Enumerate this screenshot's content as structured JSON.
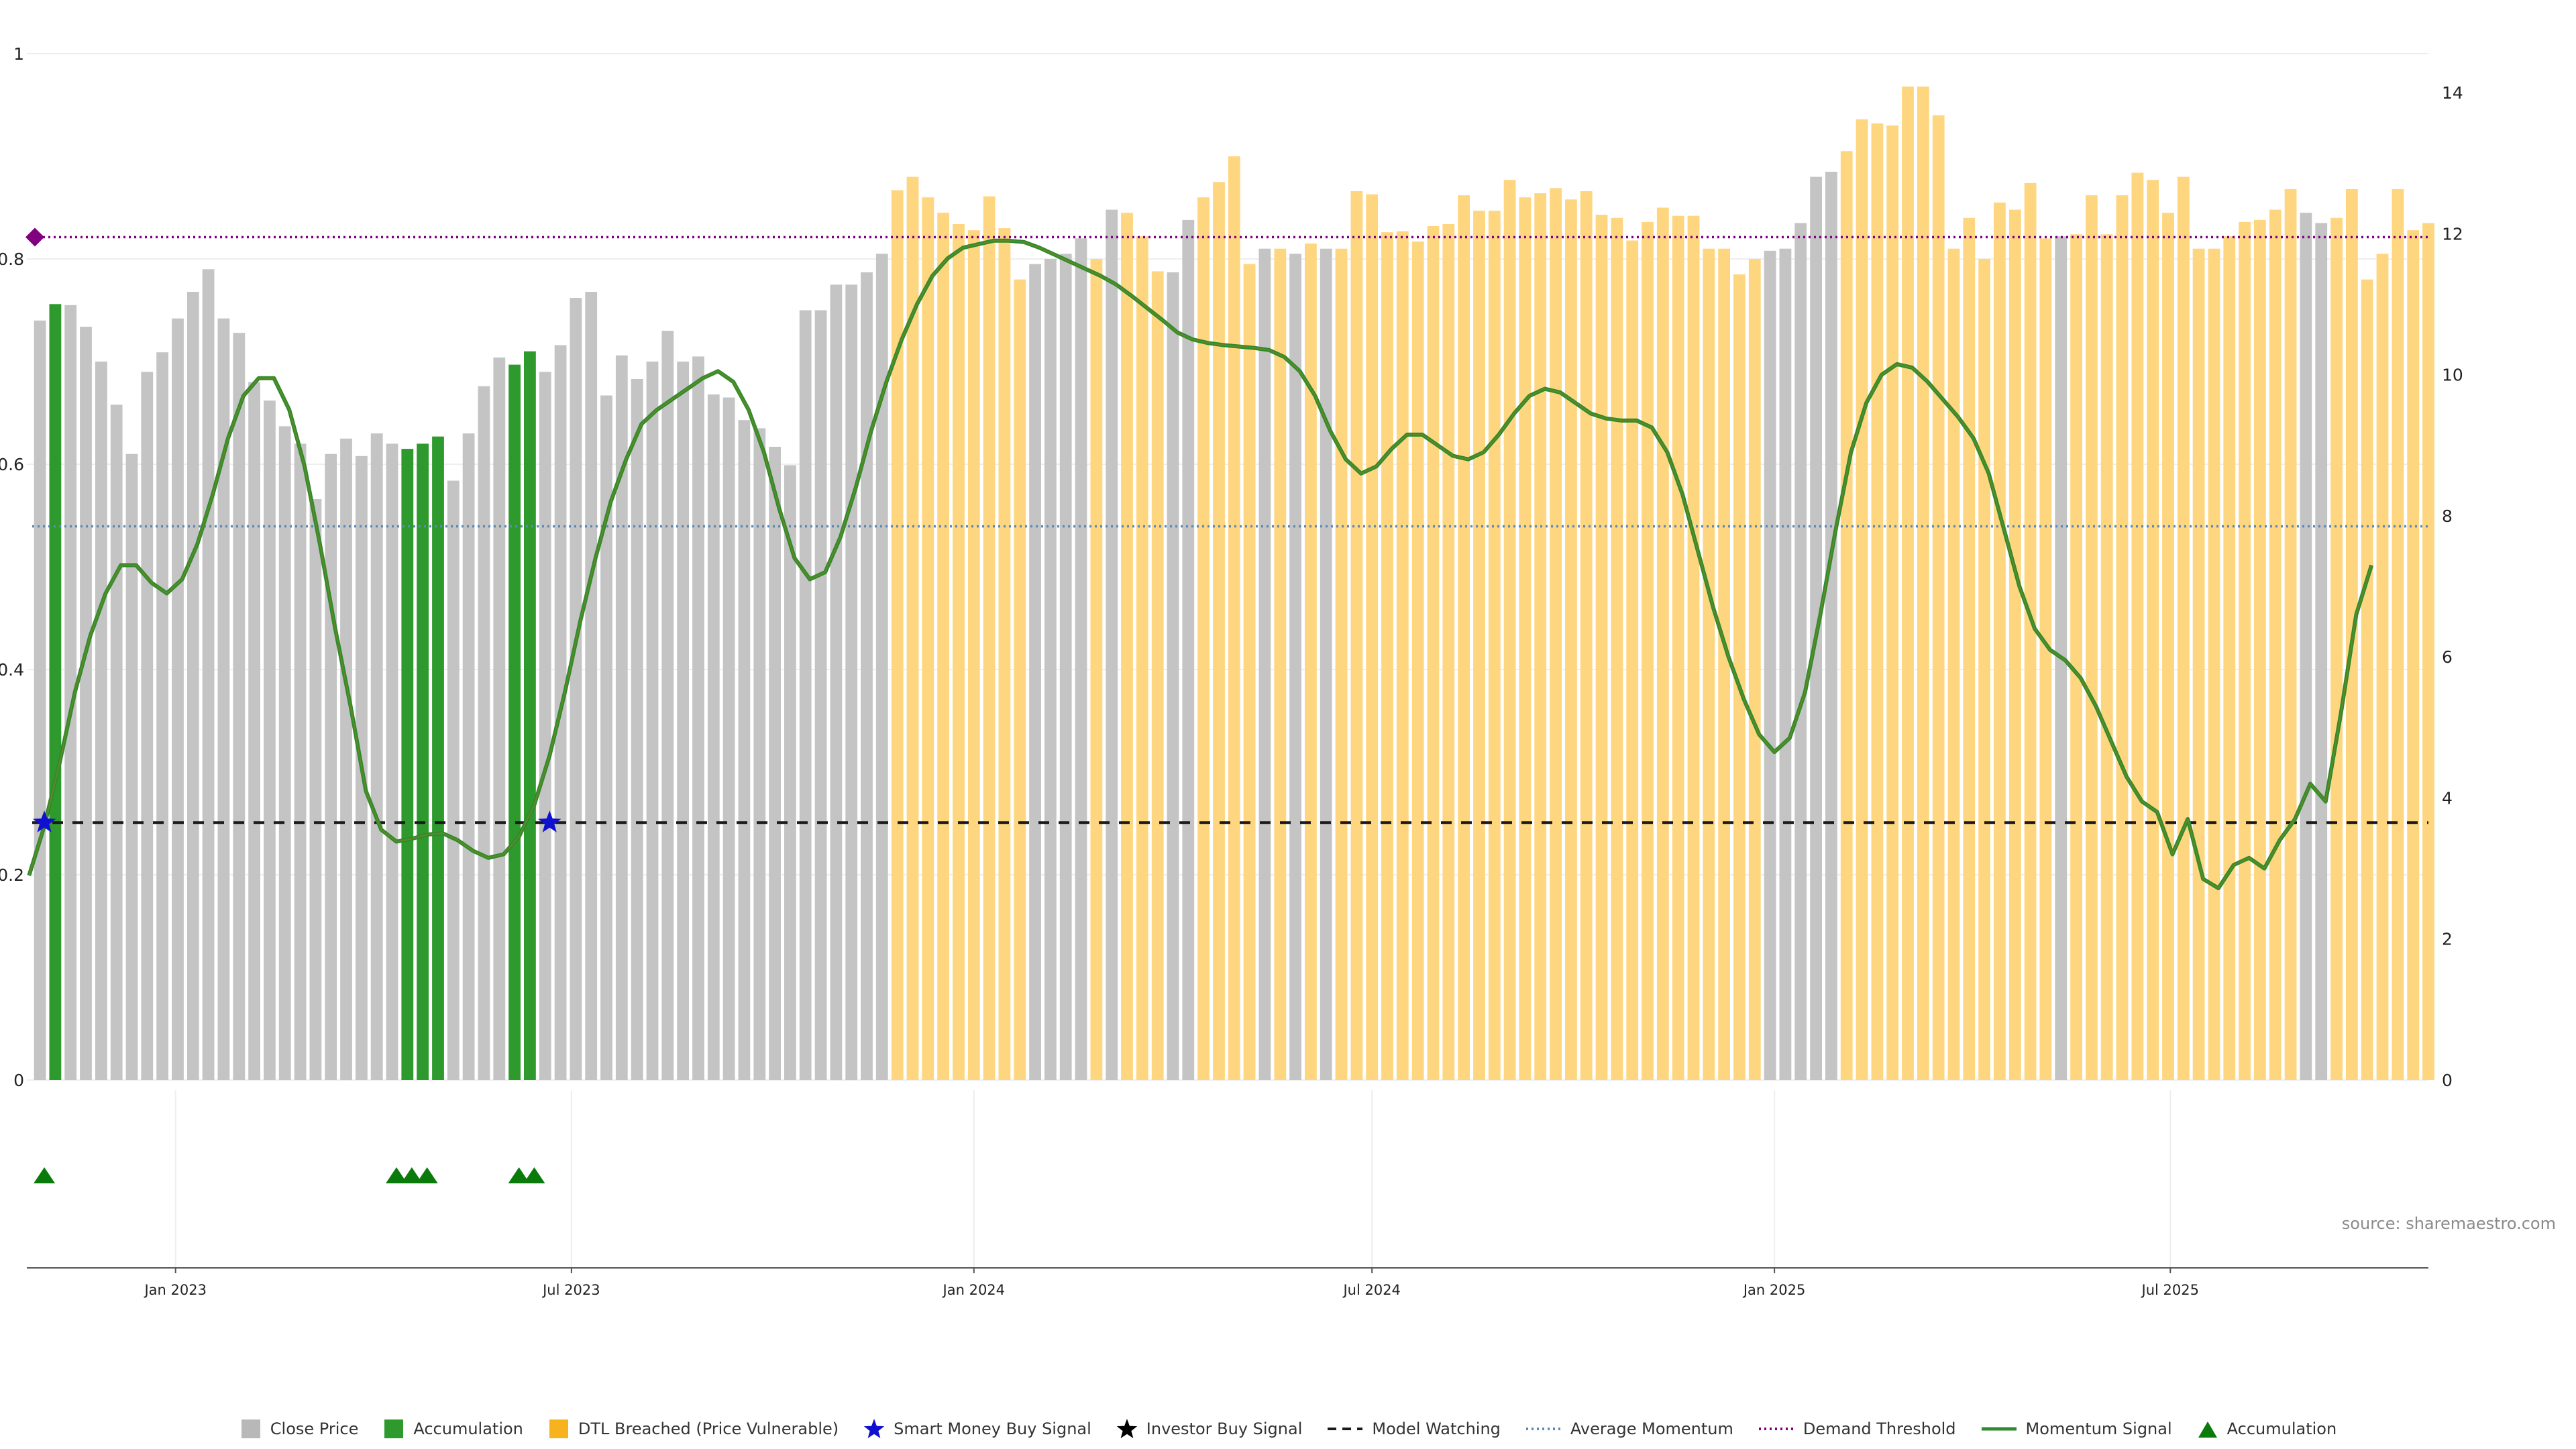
{
  "source_text": "source: sharemaestro.com",
  "chart_data": {
    "type": "bar",
    "title": "",
    "xlabel": "",
    "ylabel": "",
    "left_axis": {
      "ylim": [
        0,
        1
      ],
      "ticks": [
        "0",
        "0.2",
        "0.4",
        "0.6",
        "0.8",
        "1"
      ]
    },
    "right_axis": {
      "ylim": [
        0,
        14
      ],
      "ticks": [
        "0",
        "2",
        "4",
        "6",
        "8",
        "10",
        "12",
        "14"
      ]
    },
    "x_axis": {
      "start": "2022-10-25",
      "end": "2025-10-27",
      "ticks": [
        {
          "date": "2023-01-01",
          "label": "Jan 2023"
        },
        {
          "date": "2023-07-01",
          "label": "Jul 2023"
        },
        {
          "date": "2024-01-01",
          "label": "Jan 2024"
        },
        {
          "date": "2024-07-01",
          "label": "Jul 2024"
        },
        {
          "date": "2025-01-01",
          "label": "Jan 2025"
        },
        {
          "date": "2025-07-01",
          "label": "Jul 2025"
        }
      ]
    },
    "colors": {
      "close": "#c4c4c4",
      "accumulation": "#2e9a2e",
      "dtl": "#ffd680",
      "momentum": "#2f8a2f",
      "momentum_overlay": "#8a8a1a",
      "avg_momentum": "#5b8ab8",
      "demand_threshold": "#800080",
      "model_watching": "#1a1a1a",
      "smart_money": "#1010d0",
      "investor": "#000000",
      "marker": "#0a7a0a"
    },
    "first_week": "2022-10-31",
    "close_values": [
      0.74,
      0.756,
      0.755,
      0.734,
      0.7,
      0.658,
      0.61,
      0.69,
      0.709,
      0.742,
      0.768,
      0.79,
      0.742,
      0.728,
      0.68,
      0.662,
      0.637,
      0.62,
      0.566,
      0.61,
      0.625,
      0.608,
      0.63,
      0.62,
      0.615,
      0.62,
      0.627,
      0.584,
      0.63,
      0.676,
      0.704,
      0.697,
      0.71,
      0.69,
      0.716,
      0.762,
      0.768,
      0.667,
      0.706,
      0.683,
      0.7,
      0.73,
      0.7,
      0.705,
      0.668,
      0.665,
      0.643,
      0.635,
      0.617,
      0.599,
      0.75,
      0.75,
      0.775,
      0.775,
      0.787,
      0.805,
      0.867,
      0.88,
      0.86,
      0.845,
      0.834,
      0.828,
      0.861,
      0.83,
      0.78,
      0.795,
      0.8,
      0.805,
      0.82,
      0.8,
      0.848,
      0.845,
      0.822,
      0.788,
      0.787,
      0.838,
      0.86,
      0.875,
      0.9,
      0.795,
      0.81,
      0.81,
      0.805,
      0.815,
      0.81,
      0.81,
      0.866,
      0.863,
      0.826,
      0.827,
      0.817,
      0.832,
      0.834,
      0.862,
      0.847,
      0.847,
      0.877,
      0.86,
      0.864,
      0.869,
      0.858,
      0.866,
      0.843,
      0.84,
      0.818,
      0.836,
      0.85,
      0.842,
      0.842,
      0.81,
      0.81,
      0.785,
      0.8,
      0.808,
      0.81,
      0.835,
      0.88,
      0.885,
      0.905,
      0.936,
      0.932,
      0.93,
      0.968,
      0.968,
      0.94,
      0.81,
      0.84,
      0.8,
      0.855,
      0.848,
      0.874,
      0.82,
      0.822,
      0.824,
      0.862,
      0.824,
      0.862,
      0.884,
      0.877,
      0.845,
      0.88,
      0.81,
      0.81,
      0.822,
      0.836,
      0.838,
      0.848,
      0.868,
      0.845,
      0.835,
      0.84,
      0.868,
      0.78,
      0.805,
      0.868,
      0.828,
      0.835
    ],
    "bar_category": "GAGGGGGGGGGGGGGGGGGGGGGGAAAGGGGAAGGGGGGGGGGGGGGGGGGGGGGGDDDDDDDDDGGGGDGDDDGGDDDDGDGDGDDDDDDDDDDDDDDDDDDDDDDDDDDDDGGGGGDDDDDDDDDDDDDDGDDDDDDDDDDDDDDDGGDDDDDDDDDDGGDDD",
    "bar_category_legend": {
      "G": "Close Price",
      "A": "Accumulation",
      "D": "DTL Breached (Price Vulnerable)"
    },
    "momentum_points": [
      [
        "2022-10-26",
        2.9
      ],
      [
        "2022-11-02",
        3.6
      ],
      [
        "2022-11-09",
        4.5
      ],
      [
        "2022-11-16",
        5.5
      ],
      [
        "2022-11-23",
        6.3
      ],
      [
        "2022-11-30",
        6.9
      ],
      [
        "2022-12-07",
        7.3
      ],
      [
        "2022-12-14",
        7.3
      ],
      [
        "2022-12-21",
        7.05
      ],
      [
        "2022-12-28",
        6.9
      ],
      [
        "2023-01-04",
        7.1
      ],
      [
        "2023-01-11",
        7.6
      ],
      [
        "2023-01-18",
        8.3
      ],
      [
        "2023-01-25",
        9.1
      ],
      [
        "2023-02-01",
        9.7
      ],
      [
        "2023-02-08",
        9.95
      ],
      [
        "2023-02-15",
        9.95
      ],
      [
        "2023-02-22",
        9.5
      ],
      [
        "2023-03-01",
        8.7
      ],
      [
        "2023-03-08",
        7.6
      ],
      [
        "2023-03-15",
        6.4
      ],
      [
        "2023-03-22",
        5.3
      ],
      [
        "2023-03-29",
        4.1
      ],
      [
        "2023-04-05",
        3.55
      ],
      [
        "2023-04-12",
        3.38
      ],
      [
        "2023-04-19",
        3.42
      ],
      [
        "2023-04-26",
        3.48
      ],
      [
        "2023-05-03",
        3.5
      ],
      [
        "2023-05-10",
        3.4
      ],
      [
        "2023-05-17",
        3.25
      ],
      [
        "2023-05-24",
        3.15
      ],
      [
        "2023-05-31",
        3.2
      ],
      [
        "2023-06-07",
        3.45
      ],
      [
        "2023-06-14",
        3.9
      ],
      [
        "2023-06-21",
        4.6
      ],
      [
        "2023-06-28",
        5.5
      ],
      [
        "2023-07-05",
        6.5
      ],
      [
        "2023-07-12",
        7.4
      ],
      [
        "2023-07-19",
        8.2
      ],
      [
        "2023-07-26",
        8.8
      ],
      [
        "2023-08-02",
        9.3
      ],
      [
        "2023-08-09",
        9.5
      ],
      [
        "2023-08-16",
        9.65
      ],
      [
        "2023-08-23",
        9.8
      ],
      [
        "2023-08-30",
        9.95
      ],
      [
        "2023-09-06",
        10.05
      ],
      [
        "2023-09-13",
        9.9
      ],
      [
        "2023-09-20",
        9.5
      ],
      [
        "2023-09-27",
        8.9
      ],
      [
        "2023-10-04",
        8.1
      ],
      [
        "2023-10-11",
        7.4
      ],
      [
        "2023-10-18",
        7.1
      ],
      [
        "2023-10-25",
        7.2
      ],
      [
        "2023-11-01",
        7.7
      ],
      [
        "2023-11-08",
        8.4
      ],
      [
        "2023-11-15",
        9.2
      ],
      [
        "2023-11-22",
        9.9
      ],
      [
        "2023-11-29",
        10.5
      ],
      [
        "2023-12-06",
        11.0
      ],
      [
        "2023-12-13",
        11.4
      ],
      [
        "2023-12-20",
        11.65
      ],
      [
        "2023-12-27",
        11.8
      ],
      [
        "2024-01-03",
        11.85
      ],
      [
        "2024-01-10",
        11.9
      ],
      [
        "2024-01-17",
        11.9
      ],
      [
        "2024-01-24",
        11.88
      ],
      [
        "2024-01-31",
        11.8
      ],
      [
        "2024-02-07",
        11.7
      ],
      [
        "2024-02-14",
        11.6
      ],
      [
        "2024-02-21",
        11.5
      ],
      [
        "2024-02-28",
        11.4
      ],
      [
        "2024-03-06",
        11.28
      ],
      [
        "2024-03-13",
        11.12
      ],
      [
        "2024-03-20",
        10.95
      ],
      [
        "2024-03-27",
        10.78
      ],
      [
        "2024-04-03",
        10.6
      ],
      [
        "2024-04-10",
        10.5
      ],
      [
        "2024-04-17",
        10.45
      ],
      [
        "2024-04-24",
        10.42
      ],
      [
        "2024-05-01",
        10.4
      ],
      [
        "2024-05-08",
        10.38
      ],
      [
        "2024-05-15",
        10.35
      ],
      [
        "2024-05-22",
        10.25
      ],
      [
        "2024-05-29",
        10.05
      ],
      [
        "2024-06-05",
        9.7
      ],
      [
        "2024-06-12",
        9.2
      ],
      [
        "2024-06-19",
        8.8
      ],
      [
        "2024-06-26",
        8.6
      ],
      [
        "2024-07-03",
        8.7
      ],
      [
        "2024-07-10",
        8.95
      ],
      [
        "2024-07-17",
        9.15
      ],
      [
        "2024-07-24",
        9.15
      ],
      [
        "2024-07-31",
        9.0
      ],
      [
        "2024-08-07",
        8.85
      ],
      [
        "2024-08-14",
        8.8
      ],
      [
        "2024-08-21",
        8.9
      ],
      [
        "2024-08-28",
        9.15
      ],
      [
        "2024-09-04",
        9.45
      ],
      [
        "2024-09-11",
        9.7
      ],
      [
        "2024-09-18",
        9.8
      ],
      [
        "2024-09-25",
        9.75
      ],
      [
        "2024-10-02",
        9.6
      ],
      [
        "2024-10-09",
        9.45
      ],
      [
        "2024-10-16",
        9.38
      ],
      [
        "2024-10-23",
        9.35
      ],
      [
        "2024-10-30",
        9.35
      ],
      [
        "2024-11-06",
        9.25
      ],
      [
        "2024-11-13",
        8.9
      ],
      [
        "2024-11-20",
        8.3
      ],
      [
        "2024-11-27",
        7.5
      ],
      [
        "2024-12-04",
        6.7
      ],
      [
        "2024-12-11",
        6.0
      ],
      [
        "2024-12-18",
        5.4
      ],
      [
        "2024-12-25",
        4.9
      ],
      [
        "2025-01-01",
        4.65
      ],
      [
        "2025-01-08",
        4.85
      ],
      [
        "2025-01-15",
        5.5
      ],
      [
        "2025-01-22",
        6.6
      ],
      [
        "2025-01-29",
        7.8
      ],
      [
        "2025-02-05",
        8.9
      ],
      [
        "2025-02-12",
        9.6
      ],
      [
        "2025-02-19",
        10.0
      ],
      [
        "2025-02-26",
        10.15
      ],
      [
        "2025-03-05",
        10.1
      ],
      [
        "2025-03-12",
        9.9
      ],
      [
        "2025-03-19",
        9.65
      ],
      [
        "2025-03-26",
        9.4
      ],
      [
        "2025-04-02",
        9.1
      ],
      [
        "2025-04-09",
        8.6
      ],
      [
        "2025-04-16",
        7.8
      ],
      [
        "2025-04-23",
        7.0
      ],
      [
        "2025-04-30",
        6.4
      ],
      [
        "2025-05-07",
        6.1
      ],
      [
        "2025-05-14",
        5.95
      ],
      [
        "2025-05-21",
        5.7
      ],
      [
        "2025-05-28",
        5.3
      ],
      [
        "2025-06-04",
        4.8
      ],
      [
        "2025-06-11",
        4.3
      ],
      [
        "2025-06-18",
        3.95
      ],
      [
        "2025-06-25",
        3.8
      ],
      [
        "2025-07-02",
        3.2
      ],
      [
        "2025-07-09",
        3.7
      ],
      [
        "2025-07-16",
        2.85
      ],
      [
        "2025-07-23",
        2.72
      ],
      [
        "2025-07-30",
        3.05
      ],
      [
        "2025-08-06",
        3.15
      ],
      [
        "2025-08-13",
        3.0
      ],
      [
        "2025-08-20",
        3.4
      ],
      [
        "2025-08-27",
        3.7
      ],
      [
        "2025-09-03",
        4.2
      ],
      [
        "2025-09-10",
        3.95
      ],
      [
        "2025-09-17",
        5.2
      ],
      [
        "2025-09-24",
        6.6
      ],
      [
        "2025-10-01",
        7.3
      ]
    ],
    "average_momentum": 7.85,
    "demand_threshold": 11.95,
    "model_watching": 3.65,
    "smart_money_signals": [
      [
        "2022-11-02",
        3.65
      ],
      [
        "2023-06-21",
        3.65
      ]
    ],
    "accumulation_markers": [
      "2022-11-02",
      "2023-04-12",
      "2023-04-19",
      "2023-04-26",
      "2023-06-07",
      "2023-06-14"
    ],
    "legend": [
      {
        "key": "close",
        "label": "Close Price",
        "symbol": "square"
      },
      {
        "key": "accumulation",
        "label": "Accumulation",
        "symbol": "square"
      },
      {
        "key": "dtl",
        "label": "DTL Breached (Price Vulnerable)",
        "symbol": "square"
      },
      {
        "key": "smart_money",
        "label": "Smart Money Buy Signal",
        "symbol": "star"
      },
      {
        "key": "investor",
        "label": "Investor Buy Signal",
        "symbol": "star"
      },
      {
        "key": "model_watching",
        "label": "Model Watching",
        "symbol": "dash"
      },
      {
        "key": "avg_momentum",
        "label": "Average Momentum",
        "symbol": "dot"
      },
      {
        "key": "demand_threshold",
        "label": "Demand Threshold",
        "symbol": "dot"
      },
      {
        "key": "momentum",
        "label": "Momentum Signal",
        "symbol": "line"
      },
      {
        "key": "marker",
        "label": "Accumulation",
        "symbol": "triangle"
      }
    ]
  }
}
